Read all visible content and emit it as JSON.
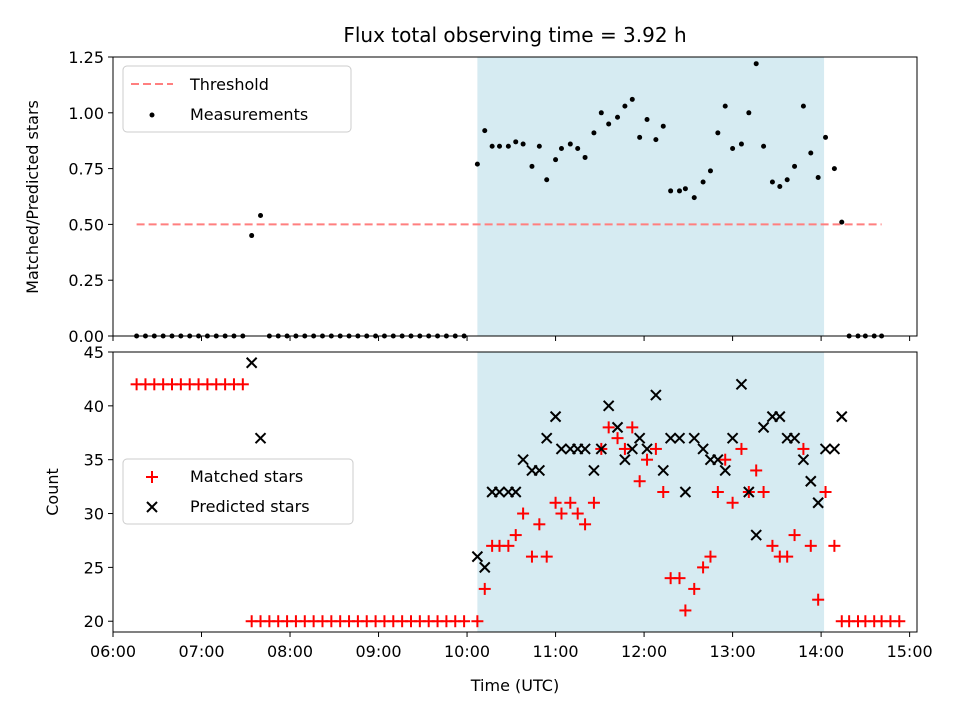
{
  "chart_data": [
    {
      "type": "scatter",
      "title": "Flux total observing time = 3.92 h",
      "xlabel": "",
      "ylabel": "Matched/Predicted stars",
      "xlim": [
        "06:00",
        "15:05"
      ],
      "ylim": [
        0,
        1.25
      ],
      "yticks": [
        "0.00",
        "0.25",
        "0.50",
        "0.75",
        "1.00",
        "1.25"
      ],
      "xtick_labels_shown": false,
      "legend_position": "upper left",
      "highlight_span": {
        "start": "10:07",
        "end": "14:02",
        "color": "#add8e6"
      },
      "threshold": {
        "name": "Threshold",
        "value": 0.5,
        "x": [
          "06:16",
          "14:41"
        ],
        "color": "#ff7f7f",
        "style": "dashed"
      },
      "series": [
        {
          "name": "Measurements",
          "color": "#000000",
          "marker": "dot",
          "points": [
            [
              "06:16",
              0
            ],
            [
              "06:22",
              0
            ],
            [
              "06:28",
              0
            ],
            [
              "06:34",
              0
            ],
            [
              "06:40",
              0
            ],
            [
              "06:46",
              0
            ],
            [
              "06:52",
              0
            ],
            [
              "06:58",
              0
            ],
            [
              "07:04",
              0
            ],
            [
              "07:10",
              0
            ],
            [
              "07:16",
              0
            ],
            [
              "07:22",
              0
            ],
            [
              "07:28",
              0
            ],
            [
              "07:34",
              0.45
            ],
            [
              "07:40",
              0.54
            ],
            [
              "07:46",
              0
            ],
            [
              "07:52",
              0
            ],
            [
              "07:58",
              0
            ],
            [
              "08:04",
              0
            ],
            [
              "08:10",
              0
            ],
            [
              "08:16",
              0
            ],
            [
              "08:22",
              0
            ],
            [
              "08:28",
              0
            ],
            [
              "08:34",
              0
            ],
            [
              "08:40",
              0
            ],
            [
              "08:46",
              0
            ],
            [
              "08:52",
              0
            ],
            [
              "08:58",
              0
            ],
            [
              "09:04",
              0
            ],
            [
              "09:10",
              0
            ],
            [
              "09:16",
              0
            ],
            [
              "09:22",
              0
            ],
            [
              "09:28",
              0
            ],
            [
              "09:34",
              0
            ],
            [
              "09:40",
              0
            ],
            [
              "09:46",
              0
            ],
            [
              "09:52",
              0
            ],
            [
              "09:58",
              0
            ],
            [
              "10:07",
              0.77
            ],
            [
              "10:12",
              0.92
            ],
            [
              "10:17",
              0.85
            ],
            [
              "10:22",
              0.85
            ],
            [
              "10:28",
              0.85
            ],
            [
              "10:33",
              0.87
            ],
            [
              "10:38",
              0.86
            ],
            [
              "10:44",
              0.76
            ],
            [
              "10:49",
              0.85
            ],
            [
              "10:54",
              0.7
            ],
            [
              "11:00",
              0.79
            ],
            [
              "11:04",
              0.84
            ],
            [
              "11:10",
              0.86
            ],
            [
              "11:15",
              0.84
            ],
            [
              "11:20",
              0.8
            ],
            [
              "11:26",
              0.91
            ],
            [
              "11:31",
              1.0
            ],
            [
              "11:36",
              0.95
            ],
            [
              "11:42",
              0.98
            ],
            [
              "11:47",
              1.03
            ],
            [
              "11:52",
              1.06
            ],
            [
              "11:57",
              0.89
            ],
            [
              "12:02",
              0.97
            ],
            [
              "12:08",
              0.88
            ],
            [
              "12:13",
              0.94
            ],
            [
              "12:18",
              0.65
            ],
            [
              "12:24",
              0.65
            ],
            [
              "12:28",
              0.66
            ],
            [
              "12:34",
              0.62
            ],
            [
              "12:40",
              0.69
            ],
            [
              "12:45",
              0.74
            ],
            [
              "12:50",
              0.91
            ],
            [
              "12:55",
              1.03
            ],
            [
              "13:00",
              0.84
            ],
            [
              "13:06",
              0.86
            ],
            [
              "13:11",
              1.0
            ],
            [
              "13:16",
              1.22
            ],
            [
              "13:21",
              0.85
            ],
            [
              "13:27",
              0.69
            ],
            [
              "13:32",
              0.67
            ],
            [
              "13:37",
              0.7
            ],
            [
              "13:42",
              0.76
            ],
            [
              "13:48",
              1.03
            ],
            [
              "13:53",
              0.82
            ],
            [
              "13:58",
              0.71
            ],
            [
              "14:03",
              0.89
            ],
            [
              "14:09",
              0.75
            ],
            [
              "14:14",
              0.51
            ],
            [
              "14:19",
              0
            ],
            [
              "14:25",
              0
            ],
            [
              "14:30",
              0
            ],
            [
              "14:36",
              0
            ],
            [
              "14:41",
              0
            ]
          ]
        }
      ]
    },
    {
      "type": "scatter",
      "title": "",
      "xlabel": "Time (UTC)",
      "ylabel": "Count",
      "xlim": [
        "06:00",
        "15:05"
      ],
      "ylim": [
        19,
        45
      ],
      "yticks": [
        "20",
        "25",
        "30",
        "35",
        "40",
        "45"
      ],
      "xticks": [
        "06:00",
        "07:00",
        "08:00",
        "09:00",
        "10:00",
        "11:00",
        "12:00",
        "13:00",
        "14:00",
        "15:00"
      ],
      "legend_position": "center left",
      "highlight_span": {
        "start": "10:07",
        "end": "14:02",
        "color": "#add8e6"
      },
      "series": [
        {
          "name": "Matched stars",
          "color": "#ff0000",
          "marker": "plus",
          "points": [
            [
              "06:16",
              42
            ],
            [
              "06:22",
              42
            ],
            [
              "06:28",
              42
            ],
            [
              "06:34",
              42
            ],
            [
              "06:40",
              42
            ],
            [
              "06:46",
              42
            ],
            [
              "06:52",
              42
            ],
            [
              "06:58",
              42
            ],
            [
              "07:04",
              42
            ],
            [
              "07:10",
              42
            ],
            [
              "07:16",
              42
            ],
            [
              "07:22",
              42
            ],
            [
              "07:28",
              42
            ],
            [
              "07:34",
              20
            ],
            [
              "07:40",
              20
            ],
            [
              "07:46",
              20
            ],
            [
              "07:52",
              20
            ],
            [
              "07:58",
              20
            ],
            [
              "08:04",
              20
            ],
            [
              "08:10",
              20
            ],
            [
              "08:16",
              20
            ],
            [
              "08:22",
              20
            ],
            [
              "08:28",
              20
            ],
            [
              "08:34",
              20
            ],
            [
              "08:40",
              20
            ],
            [
              "08:46",
              20
            ],
            [
              "08:52",
              20
            ],
            [
              "08:58",
              20
            ],
            [
              "09:04",
              20
            ],
            [
              "09:10",
              20
            ],
            [
              "09:16",
              20
            ],
            [
              "09:22",
              20
            ],
            [
              "09:28",
              20
            ],
            [
              "09:34",
              20
            ],
            [
              "09:40",
              20
            ],
            [
              "09:46",
              20
            ],
            [
              "09:52",
              20
            ],
            [
              "09:58",
              20
            ],
            [
              "10:07",
              20
            ],
            [
              "10:12",
              23
            ],
            [
              "10:17",
              27
            ],
            [
              "10:22",
              27
            ],
            [
              "10:28",
              27
            ],
            [
              "10:33",
              28
            ],
            [
              "10:38",
              30
            ],
            [
              "10:44",
              26
            ],
            [
              "10:49",
              29
            ],
            [
              "10:54",
              26
            ],
            [
              "11:00",
              31
            ],
            [
              "11:04",
              30
            ],
            [
              "11:10",
              31
            ],
            [
              "11:15",
              30
            ],
            [
              "11:20",
              29
            ],
            [
              "11:26",
              31
            ],
            [
              "11:31",
              36
            ],
            [
              "11:36",
              38
            ],
            [
              "11:42",
              37
            ],
            [
              "11:47",
              36
            ],
            [
              "11:52",
              38
            ],
            [
              "11:57",
              33
            ],
            [
              "12:02",
              35
            ],
            [
              "12:08",
              36
            ],
            [
              "12:13",
              32
            ],
            [
              "12:18",
              24
            ],
            [
              "12:24",
              24
            ],
            [
              "12:28",
              21
            ],
            [
              "12:34",
              23
            ],
            [
              "12:40",
              25
            ],
            [
              "12:45",
              26
            ],
            [
              "12:50",
              32
            ],
            [
              "12:55",
              35
            ],
            [
              "13:00",
              31
            ],
            [
              "13:06",
              36
            ],
            [
              "13:11",
              32
            ],
            [
              "13:16",
              34
            ],
            [
              "13:21",
              32
            ],
            [
              "13:27",
              27
            ],
            [
              "13:32",
              26
            ],
            [
              "13:37",
              26
            ],
            [
              "13:42",
              28
            ],
            [
              "13:48",
              36
            ],
            [
              "13:53",
              27
            ],
            [
              "13:58",
              22
            ],
            [
              "14:03",
              32
            ],
            [
              "14:09",
              27
            ],
            [
              "14:14",
              20
            ],
            [
              "14:19",
              20
            ],
            [
              "14:25",
              20
            ],
            [
              "14:30",
              20
            ],
            [
              "14:36",
              20
            ],
            [
              "14:41",
              20
            ],
            [
              "14:47",
              20
            ],
            [
              "14:53",
              20
            ]
          ]
        },
        {
          "name": "Predicted stars",
          "color": "#000000",
          "marker": "x",
          "points": [
            [
              "07:34",
              44
            ],
            [
              "07:40",
              37
            ],
            [
              "10:07",
              26
            ],
            [
              "10:12",
              25
            ],
            [
              "10:17",
              32
            ],
            [
              "10:22",
              32
            ],
            [
              "10:28",
              32
            ],
            [
              "10:33",
              32
            ],
            [
              "10:38",
              35
            ],
            [
              "10:44",
              34
            ],
            [
              "10:49",
              34
            ],
            [
              "10:54",
              37
            ],
            [
              "11:00",
              39
            ],
            [
              "11:04",
              36
            ],
            [
              "11:10",
              36
            ],
            [
              "11:15",
              36
            ],
            [
              "11:20",
              36
            ],
            [
              "11:26",
              34
            ],
            [
              "11:31",
              36
            ],
            [
              "11:36",
              40
            ],
            [
              "11:42",
              38
            ],
            [
              "11:47",
              35
            ],
            [
              "11:52",
              36
            ],
            [
              "11:57",
              37
            ],
            [
              "12:02",
              36
            ],
            [
              "12:08",
              41
            ],
            [
              "12:13",
              34
            ],
            [
              "12:18",
              37
            ],
            [
              "12:24",
              37
            ],
            [
              "12:28",
              32
            ],
            [
              "12:34",
              37
            ],
            [
              "12:40",
              36
            ],
            [
              "12:45",
              35
            ],
            [
              "12:50",
              35
            ],
            [
              "12:55",
              34
            ],
            [
              "13:00",
              37
            ],
            [
              "13:06",
              42
            ],
            [
              "13:11",
              32
            ],
            [
              "13:16",
              28
            ],
            [
              "13:21",
              38
            ],
            [
              "13:27",
              39
            ],
            [
              "13:32",
              39
            ],
            [
              "13:37",
              37
            ],
            [
              "13:42",
              37
            ],
            [
              "13:48",
              35
            ],
            [
              "13:53",
              33
            ],
            [
              "13:58",
              31
            ],
            [
              "14:03",
              36
            ],
            [
              "14:09",
              36
            ],
            [
              "14:14",
              39
            ]
          ]
        }
      ]
    }
  ]
}
